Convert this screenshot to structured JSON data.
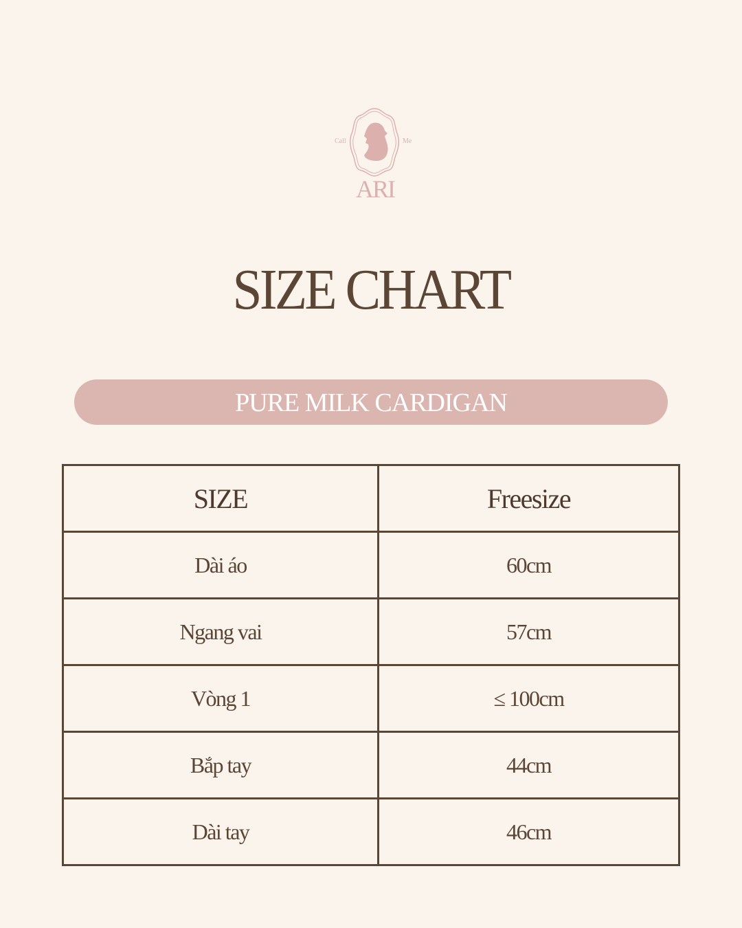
{
  "logo": {
    "left_text": "Call",
    "right_text": "Me",
    "brand": "ARI"
  },
  "title": "SIZE CHART",
  "product": "PURE MILK CARDIGAN",
  "table": {
    "header": [
      "SIZE",
      "Freesize"
    ],
    "rows": [
      [
        "Dài áo",
        "60cm"
      ],
      [
        "Ngang vai",
        "57cm"
      ],
      [
        "Vòng 1",
        "≤ 100cm"
      ],
      [
        "Bắp tay",
        "44cm"
      ],
      [
        "Dài tay",
        "46cm"
      ]
    ]
  },
  "colors": {
    "background": "#fbf4ed",
    "accent": "#dbb5b0",
    "text": "#5b4535"
  }
}
